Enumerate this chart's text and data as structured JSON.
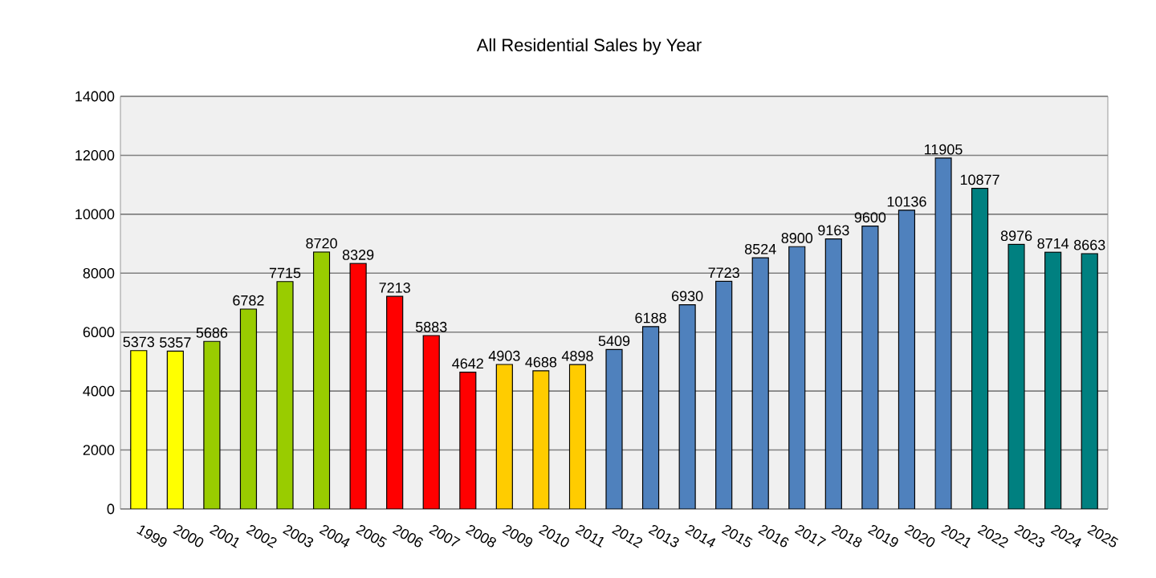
{
  "chart_data": {
    "type": "bar",
    "title": "All Residential Sales by Year",
    "categories": [
      "1999",
      "2000",
      "2001",
      "2002",
      "2003",
      "2004",
      "2005",
      "2006",
      "2007",
      "2008",
      "2009",
      "2010",
      "2011",
      "2012",
      "2013",
      "2014",
      "2015",
      "2016",
      "2017",
      "2018",
      "2019",
      "2020",
      "2021",
      "2022",
      "2023",
      "2024",
      "2025"
    ],
    "values": [
      5373,
      5357,
      5686,
      6782,
      7715,
      8720,
      8329,
      7213,
      5883,
      4642,
      4903,
      4688,
      4898,
      5409,
      6188,
      6930,
      7723,
      8524,
      8900,
      9163,
      9600,
      10136,
      11905,
      10877,
      8976,
      8714,
      8663
    ],
    "colors": [
      "#ffff00",
      "#ffff00",
      "#99cc00",
      "#99cc00",
      "#99cc00",
      "#99cc00",
      "#ff0000",
      "#ff0000",
      "#ff0000",
      "#ff0000",
      "#ffcc00",
      "#ffcc00",
      "#ffcc00",
      "#4f81bd",
      "#4f81bd",
      "#4f81bd",
      "#4f81bd",
      "#4f81bd",
      "#4f81bd",
      "#4f81bd",
      "#4f81bd",
      "#4f81bd",
      "#4f81bd",
      "#008080",
      "#008080",
      "#008080",
      "#008080"
    ],
    "ylim": [
      0,
      14000
    ],
    "yticks": [
      0,
      2000,
      4000,
      6000,
      8000,
      10000,
      12000,
      14000
    ],
    "grid": "y",
    "data_labels": true
  }
}
